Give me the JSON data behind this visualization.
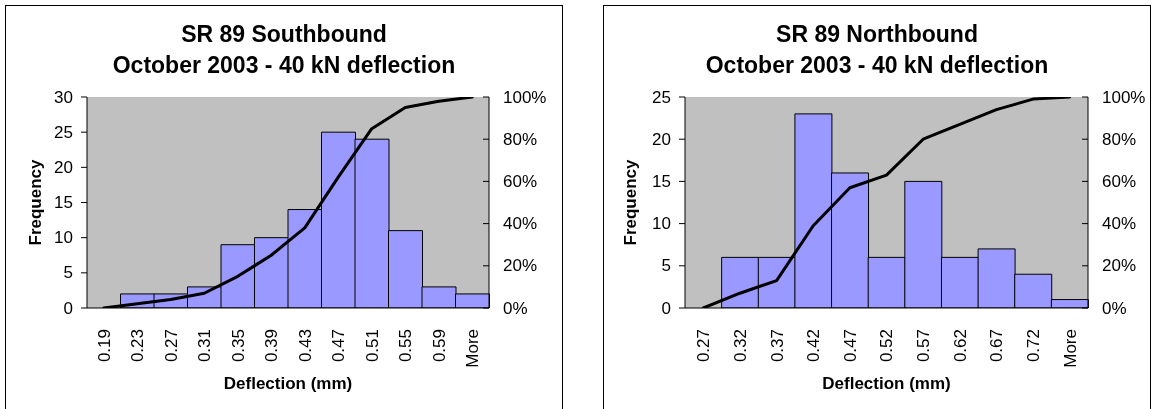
{
  "chart_data": [
    {
      "type": "bar",
      "title": "SR 89 Southbound",
      "subtitle": "October 2003 - 40 kN deflection",
      "xlabel": "Deflection (mm)",
      "ylabel": "Frequency",
      "categories": [
        "0.19",
        "0.23",
        "0.27",
        "0.31",
        "0.35",
        "0.39",
        "0.43",
        "0.47",
        "0.51",
        "0.55",
        "0.59",
        "More"
      ],
      "series": [
        {
          "color": "#9999ff",
          "values": [
            0,
            2,
            2,
            3,
            9,
            10,
            14,
            25,
            24,
            11,
            3,
            2
          ]
        },
        {
          "type": "line",
          "axis": "y2",
          "color": "#000000",
          "values": [
            0,
            2,
            4,
            7,
            15,
            25,
            38,
            62,
            85,
            95,
            98,
            100
          ]
        }
      ],
      "ylim": [
        0,
        30
      ],
      "yticks": [
        0,
        5,
        10,
        15,
        20,
        25,
        30
      ],
      "y2lim": [
        0,
        100
      ],
      "y2ticks": [
        {
          "value": 0,
          "label": "0%"
        },
        {
          "value": 20,
          "label": "20%"
        },
        {
          "value": 40,
          "label": "40%"
        },
        {
          "value": 60,
          "label": "60%"
        },
        {
          "value": 80,
          "label": "80%"
        },
        {
          "value": 100,
          "label": "100%"
        }
      ],
      "grid": false
    },
    {
      "type": "bar",
      "title": "SR 89 Northbound",
      "subtitle": "October 2003 - 40 kN deflection",
      "xlabel": "Deflection (mm)",
      "ylabel": "Frequency",
      "categories": [
        "0.27",
        "0.32",
        "0.37",
        "0.42",
        "0.47",
        "0.52",
        "0.57",
        "0.62",
        "0.67",
        "0.72",
        "More"
      ],
      "series": [
        {
          "color": "#9999ff",
          "values": [
            0,
            6,
            6,
            23,
            16,
            6,
            15,
            6,
            7,
            4,
            1
          ]
        },
        {
          "type": "line",
          "axis": "y2",
          "color": "#000000",
          "values": [
            0,
            7,
            13,
            39,
            57,
            63,
            80,
            87,
            94,
            99,
            100
          ]
        }
      ],
      "ylim": [
        0,
        25
      ],
      "yticks": [
        0,
        5,
        10,
        15,
        20,
        25
      ],
      "y2lim": [
        0,
        100
      ],
      "y2ticks": [
        {
          "value": 0,
          "label": "0%"
        },
        {
          "value": 20,
          "label": "20%"
        },
        {
          "value": 40,
          "label": "40%"
        },
        {
          "value": 60,
          "label": "60%"
        },
        {
          "value": 80,
          "label": "80%"
        },
        {
          "value": 100,
          "label": "100%"
        }
      ],
      "grid": false
    }
  ]
}
